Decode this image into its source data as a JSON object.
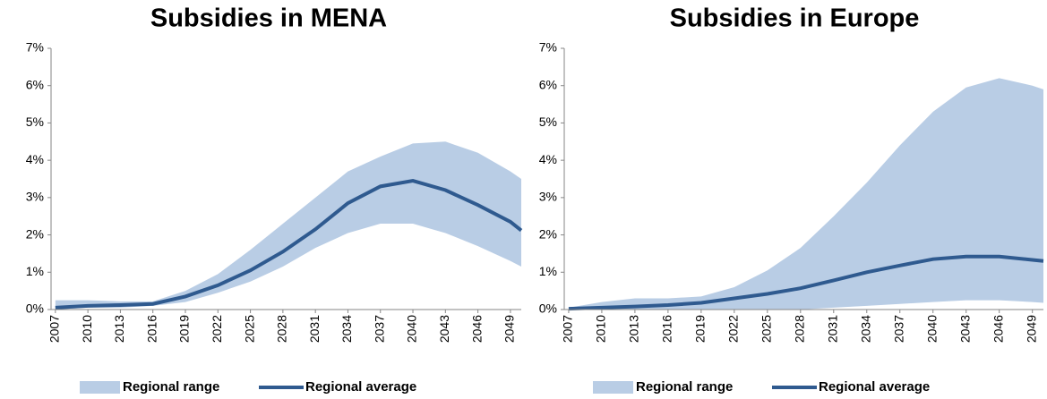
{
  "chart_data": [
    {
      "type": "range-line",
      "title": "Subsidies in MENA",
      "x": [
        2007,
        2010,
        2013,
        2016,
        2019,
        2022,
        2025,
        2028,
        2031,
        2034,
        2037,
        2040,
        2043,
        2046,
        2049,
        2050
      ],
      "xlim": [
        2006.6,
        2050
      ],
      "xticks": [
        2007,
        2010,
        2013,
        2016,
        2019,
        2022,
        2025,
        2028,
        2031,
        2034,
        2037,
        2040,
        2043,
        2046,
        2049
      ],
      "ylim": [
        0,
        7
      ],
      "yticks": [
        {
          "value": 0,
          "label": "0%"
        },
        {
          "value": 1,
          "label": "1%"
        },
        {
          "value": 2,
          "label": "2%"
        },
        {
          "value": 3,
          "label": "3%"
        },
        {
          "value": 4,
          "label": "4%"
        },
        {
          "value": 5,
          "label": "5%"
        },
        {
          "value": 6,
          "label": "6%"
        },
        {
          "value": 7,
          "label": "7%"
        }
      ],
      "series": [
        {
          "name": "Regional range",
          "color": "#b9cde5",
          "lower": [
            0,
            0.05,
            0.05,
            0.1,
            0.2,
            0.45,
            0.75,
            1.15,
            1.65,
            2.05,
            2.3,
            2.3,
            2.05,
            1.7,
            1.3,
            1.15
          ],
          "upper": [
            0.25,
            0.25,
            0.22,
            0.22,
            0.5,
            0.95,
            1.6,
            2.3,
            3.0,
            3.7,
            4.1,
            4.45,
            4.5,
            4.2,
            3.7,
            3.5
          ]
        },
        {
          "name": "Regional average",
          "color": "#2f5a8f",
          "values": [
            0.05,
            0.1,
            0.12,
            0.15,
            0.35,
            0.65,
            1.05,
            1.55,
            2.15,
            2.85,
            3.3,
            3.45,
            3.2,
            2.8,
            2.35,
            2.12
          ]
        }
      ]
    },
    {
      "type": "range-line",
      "title": "Subsidies in Europe",
      "x": [
        2007,
        2010,
        2013,
        2016,
        2019,
        2022,
        2025,
        2028,
        2031,
        2034,
        2037,
        2040,
        2043,
        2046,
        2049,
        2050
      ],
      "xlim": [
        2006.6,
        2050
      ],
      "xticks": [
        2007,
        2010,
        2013,
        2016,
        2019,
        2022,
        2025,
        2028,
        2031,
        2034,
        2037,
        2040,
        2043,
        2046,
        2049
      ],
      "ylim": [
        0,
        7
      ],
      "yticks": [
        {
          "value": 0,
          "label": "0%"
        },
        {
          "value": 1,
          "label": "1%"
        },
        {
          "value": 2,
          "label": "2%"
        },
        {
          "value": 3,
          "label": "3%"
        },
        {
          "value": 4,
          "label": "4%"
        },
        {
          "value": 5,
          "label": "5%"
        },
        {
          "value": 6,
          "label": "6%"
        },
        {
          "value": 7,
          "label": "7%"
        }
      ],
      "series": [
        {
          "name": "Regional range",
          "color": "#b9cde5",
          "lower": [
            0,
            0,
            0,
            0,
            0,
            0,
            0,
            0,
            0.05,
            0.1,
            0.15,
            0.2,
            0.25,
            0.25,
            0.2,
            0.18
          ],
          "upper": [
            0.05,
            0.2,
            0.3,
            0.3,
            0.35,
            0.6,
            1.05,
            1.65,
            2.5,
            3.4,
            4.4,
            5.3,
            5.95,
            6.2,
            6.0,
            5.9
          ]
        },
        {
          "name": "Regional average",
          "color": "#2f5a8f",
          "values": [
            0.02,
            0.05,
            0.08,
            0.12,
            0.18,
            0.3,
            0.42,
            0.57,
            0.78,
            1.0,
            1.18,
            1.35,
            1.42,
            1.42,
            1.33,
            1.3
          ]
        }
      ]
    }
  ]
}
